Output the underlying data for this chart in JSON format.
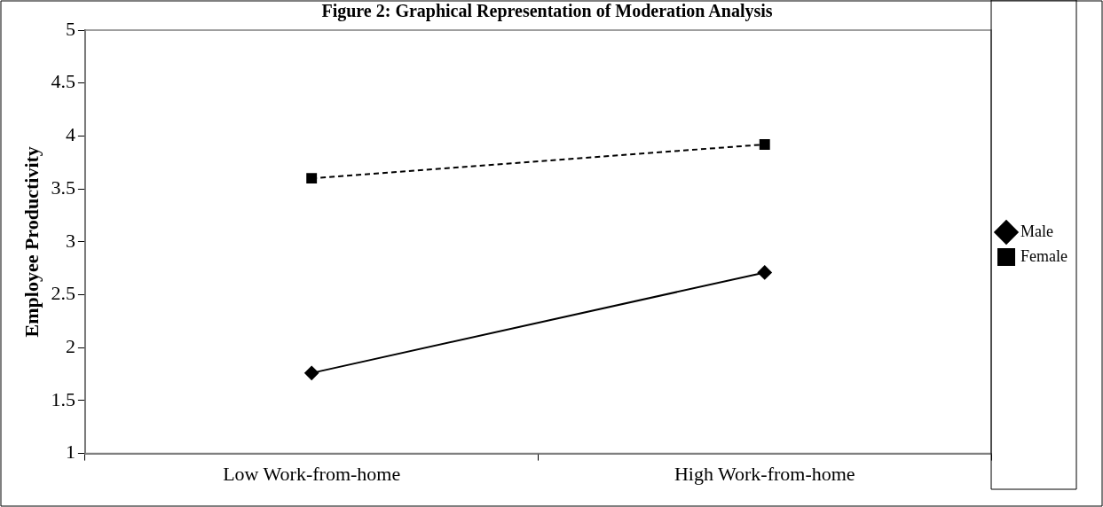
{
  "chart_data": {
    "type": "line",
    "title": "Figure 2: Graphical Representation of Moderation Analysis",
    "ylabel": "Employee Productivity",
    "categories": [
      "Low Work-from-home",
      "High Work-from-home"
    ],
    "series": [
      {
        "name": "Male",
        "color": "#000000",
        "values": [
          1.76,
          2.71
        ],
        "marker": "diamond",
        "line_style": "solid"
      },
      {
        "name": "Female",
        "color": "#000000",
        "values": [
          3.6,
          3.92
        ],
        "marker": "square",
        "line_style": "dashed"
      }
    ],
    "ylim": [
      1,
      5
    ],
    "yticks": [
      1,
      1.5,
      2,
      2.5,
      3,
      3.5,
      4,
      4.5,
      5
    ],
    "grid": false,
    "legend": "right"
  }
}
